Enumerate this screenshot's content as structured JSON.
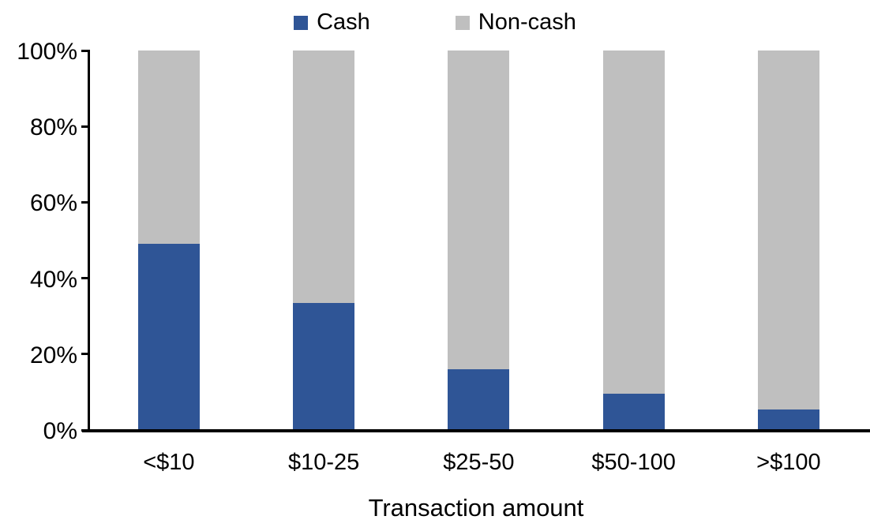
{
  "colors": {
    "cash": "#2F5596",
    "noncash": "#BFBFBF",
    "axis": "#000000",
    "background": "#FFFFFF"
  },
  "legend": {
    "items": [
      {
        "label": "Cash",
        "color_key": "cash"
      },
      {
        "label": "Non-cash",
        "color_key": "noncash"
      }
    ],
    "position": "top-center"
  },
  "chart_data": {
    "type": "bar",
    "stacked": true,
    "categories": [
      "<$10",
      "$10-25",
      "$25-50",
      "$50-100",
      ">$100"
    ],
    "series": [
      {
        "name": "Cash",
        "color_key": "cash",
        "values": [
          49,
          33.5,
          16,
          9.5,
          5.5
        ]
      },
      {
        "name": "Non-cash",
        "color_key": "noncash",
        "values": [
          51,
          66.5,
          84,
          90.5,
          94.5
        ]
      }
    ],
    "title": "",
    "xlabel": "Transaction amount",
    "ylabel": "",
    "ylim": [
      0,
      100
    ],
    "ytick_values": [
      0,
      20,
      40,
      60,
      80,
      100
    ],
    "ytick_labels": [
      "0%",
      "20%",
      "40%",
      "60%",
      "80%",
      "100%"
    ],
    "grid": "off",
    "legend_position": "top"
  }
}
